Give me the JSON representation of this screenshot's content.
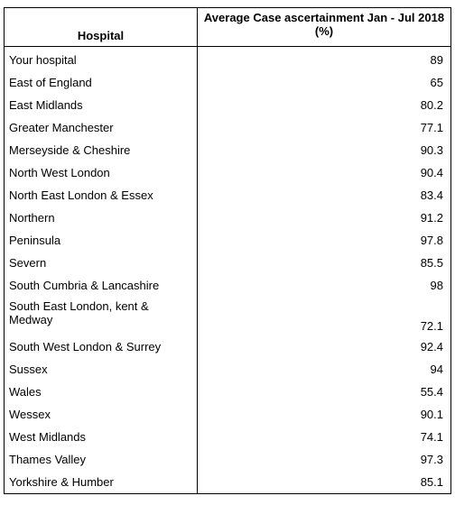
{
  "table": {
    "headers": {
      "hospital": "Hospital",
      "average": "Average Case ascertainment Jan - Jul 2018 (%)"
    },
    "rows": [
      {
        "hospital": "Your hospital",
        "value": "89"
      },
      {
        "hospital": "East of England",
        "value": "65"
      },
      {
        "hospital": "East Midlands",
        "value": "80.2"
      },
      {
        "hospital": "Greater Manchester",
        "value": "77.1"
      },
      {
        "hospital": "Merseyside & Cheshire",
        "value": "90.3"
      },
      {
        "hospital": "North West London",
        "value": "90.4"
      },
      {
        "hospital": "North East London & Essex",
        "value": "83.4"
      },
      {
        "hospital": "Northern",
        "value": "91.2"
      },
      {
        "hospital": "Peninsula",
        "value": "97.8"
      },
      {
        "hospital": "Severn",
        "value": "85.5"
      },
      {
        "hospital": "South Cumbria & Lancashire",
        "value": "98"
      },
      {
        "hospital": "South East London, kent & Medway",
        "value": "72.1"
      },
      {
        "hospital": "South West London & Surrey",
        "value": "92.4"
      },
      {
        "hospital": "Sussex",
        "value": "94"
      },
      {
        "hospital": "Wales",
        "value": "55.4"
      },
      {
        "hospital": "Wessex",
        "value": "90.1"
      },
      {
        "hospital": "West Midlands",
        "value": "74.1"
      },
      {
        "hospital": "Thames Valley",
        "value": "97.3"
      },
      {
        "hospital": "Yorkshire & Humber",
        "value": "85.1"
      }
    ]
  }
}
